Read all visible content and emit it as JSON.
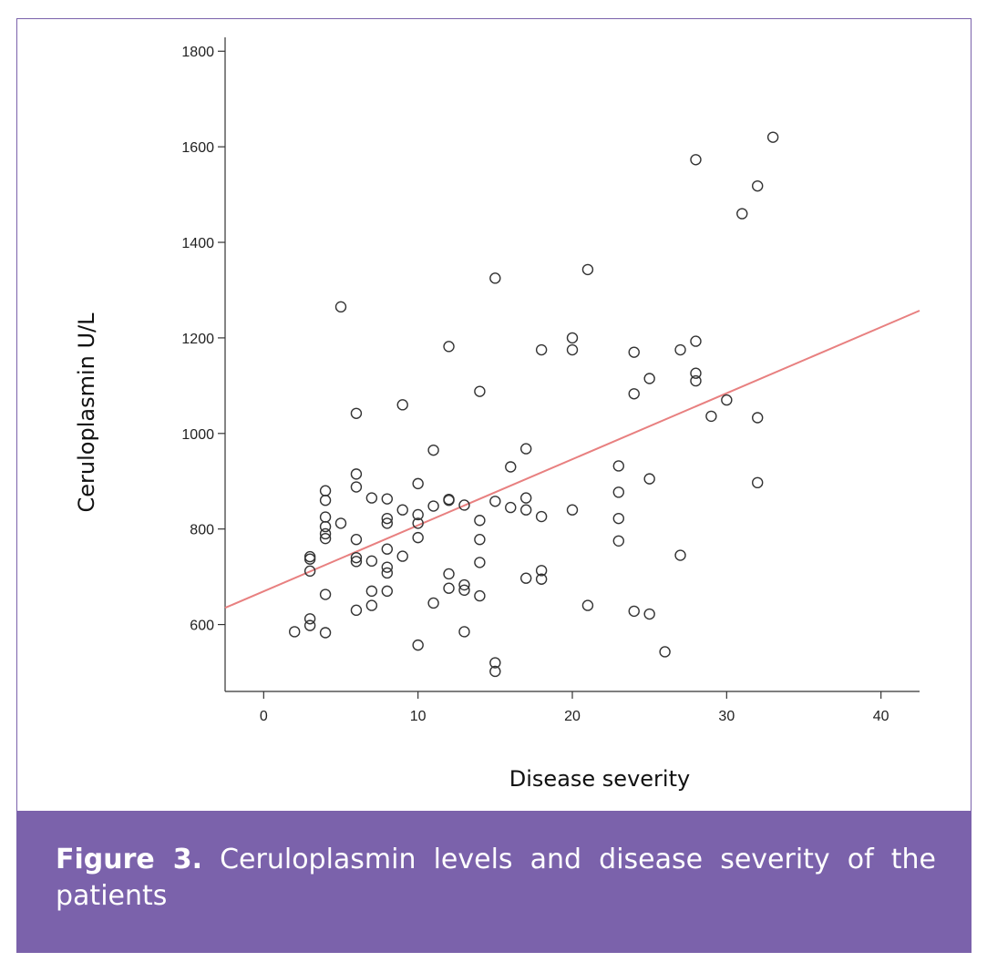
{
  "chart_data": {
    "type": "scatter",
    "xlabel": "Disease severity",
    "ylabel": "Ceruloplasmin U/L",
    "xlim": [
      -2.5,
      42.5
    ],
    "ylim": [
      460,
      1810
    ],
    "xticks": [
      0,
      10,
      20,
      30,
      40
    ],
    "yticks": [
      600,
      800,
      1000,
      1200,
      1400,
      1600,
      1800
    ],
    "grid": false,
    "point_color": "#333333",
    "fit_line_color": "#e88080",
    "fit_line": {
      "x": [
        -2.5,
        42.5
      ],
      "y": [
        635,
        1257
      ]
    },
    "points": [
      {
        "x": 2,
        "y": 585
      },
      {
        "x": 3,
        "y": 612
      },
      {
        "x": 3,
        "y": 598
      },
      {
        "x": 3,
        "y": 742
      },
      {
        "x": 3,
        "y": 737
      },
      {
        "x": 3,
        "y": 712
      },
      {
        "x": 4,
        "y": 880
      },
      {
        "x": 4,
        "y": 860
      },
      {
        "x": 4,
        "y": 825
      },
      {
        "x": 4,
        "y": 805
      },
      {
        "x": 4,
        "y": 790
      },
      {
        "x": 4,
        "y": 780
      },
      {
        "x": 4,
        "y": 663
      },
      {
        "x": 4,
        "y": 583
      },
      {
        "x": 5,
        "y": 1265
      },
      {
        "x": 5,
        "y": 812
      },
      {
        "x": 6,
        "y": 1042
      },
      {
        "x": 6,
        "y": 915
      },
      {
        "x": 6,
        "y": 888
      },
      {
        "x": 6,
        "y": 778
      },
      {
        "x": 6,
        "y": 740
      },
      {
        "x": 6,
        "y": 732
      },
      {
        "x": 6,
        "y": 630
      },
      {
        "x": 7,
        "y": 865
      },
      {
        "x": 7,
        "y": 733
      },
      {
        "x": 7,
        "y": 670
      },
      {
        "x": 7,
        "y": 640
      },
      {
        "x": 8,
        "y": 863
      },
      {
        "x": 8,
        "y": 822
      },
      {
        "x": 8,
        "y": 812
      },
      {
        "x": 8,
        "y": 758
      },
      {
        "x": 8,
        "y": 720
      },
      {
        "x": 8,
        "y": 708
      },
      {
        "x": 8,
        "y": 670
      },
      {
        "x": 9,
        "y": 1060
      },
      {
        "x": 9,
        "y": 840
      },
      {
        "x": 9,
        "y": 743
      },
      {
        "x": 10,
        "y": 895
      },
      {
        "x": 10,
        "y": 830
      },
      {
        "x": 10,
        "y": 812
      },
      {
        "x": 10,
        "y": 782
      },
      {
        "x": 10,
        "y": 557
      },
      {
        "x": 11,
        "y": 965
      },
      {
        "x": 11,
        "y": 848
      },
      {
        "x": 11,
        "y": 645
      },
      {
        "x": 12,
        "y": 1182
      },
      {
        "x": 12,
        "y": 862
      },
      {
        "x": 12,
        "y": 860
      },
      {
        "x": 12,
        "y": 706
      },
      {
        "x": 12,
        "y": 676
      },
      {
        "x": 13,
        "y": 850
      },
      {
        "x": 13,
        "y": 683
      },
      {
        "x": 13,
        "y": 672
      },
      {
        "x": 13,
        "y": 585
      },
      {
        "x": 14,
        "y": 1088
      },
      {
        "x": 14,
        "y": 818
      },
      {
        "x": 14,
        "y": 778
      },
      {
        "x": 14,
        "y": 730
      },
      {
        "x": 14,
        "y": 660
      },
      {
        "x": 15,
        "y": 1325
      },
      {
        "x": 15,
        "y": 858
      },
      {
        "x": 15,
        "y": 520
      },
      {
        "x": 15,
        "y": 502
      },
      {
        "x": 16,
        "y": 930
      },
      {
        "x": 16,
        "y": 845
      },
      {
        "x": 17,
        "y": 968
      },
      {
        "x": 17,
        "y": 865
      },
      {
        "x": 17,
        "y": 840
      },
      {
        "x": 17,
        "y": 697
      },
      {
        "x": 18,
        "y": 1175
      },
      {
        "x": 18,
        "y": 826
      },
      {
        "x": 18,
        "y": 713
      },
      {
        "x": 18,
        "y": 695
      },
      {
        "x": 20,
        "y": 1200
      },
      {
        "x": 20,
        "y": 1175
      },
      {
        "x": 20,
        "y": 840
      },
      {
        "x": 21,
        "y": 1343
      },
      {
        "x": 21,
        "y": 640
      },
      {
        "x": 23,
        "y": 932
      },
      {
        "x": 23,
        "y": 877
      },
      {
        "x": 23,
        "y": 822
      },
      {
        "x": 23,
        "y": 775
      },
      {
        "x": 24,
        "y": 1170
      },
      {
        "x": 24,
        "y": 1083
      },
      {
        "x": 24,
        "y": 628
      },
      {
        "x": 25,
        "y": 1115
      },
      {
        "x": 25,
        "y": 905
      },
      {
        "x": 25,
        "y": 622
      },
      {
        "x": 26,
        "y": 543
      },
      {
        "x": 27,
        "y": 1175
      },
      {
        "x": 27,
        "y": 745
      },
      {
        "x": 28,
        "y": 1573
      },
      {
        "x": 28,
        "y": 1193
      },
      {
        "x": 28,
        "y": 1126
      },
      {
        "x": 28,
        "y": 1110
      },
      {
        "x": 29,
        "y": 1036
      },
      {
        "x": 30,
        "y": 1070
      },
      {
        "x": 31,
        "y": 1460
      },
      {
        "x": 32,
        "y": 1518
      },
      {
        "x": 32,
        "y": 1033
      },
      {
        "x": 32,
        "y": 897
      },
      {
        "x": 33,
        "y": 1620
      }
    ]
  },
  "caption": {
    "label": "Figure 3.",
    "text": " Ceruloplasmin levels and disease severity of the patients"
  },
  "colors": {
    "frame": "#7b62ab",
    "caption_bg": "#7b62ab",
    "caption_text": "#ffffff"
  }
}
